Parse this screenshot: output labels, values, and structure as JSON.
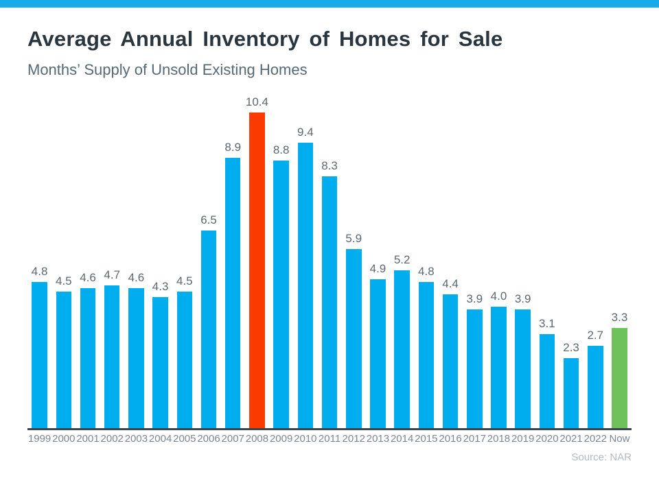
{
  "page": {
    "title": "Average Annual Inventory of Homes for Sale",
    "subtitle": "Months’ Supply of Unsold Existing Homes",
    "source": "Source: NAR"
  },
  "theme": {
    "top_strip": "#18AAE9",
    "bar_default": "#00AEEF",
    "bar_highlight": "#FB3A01",
    "bar_now": "#6FC15C",
    "title_color": "#2A363F",
    "subtitle_color": "#546A75",
    "value_label_color": "#5C6870",
    "axis_color": "#3A444E",
    "tick_color": "#7A8794",
    "source_color": "#B2BAC1"
  },
  "chart_data": {
    "type": "bar",
    "title": "Average Annual Inventory of Homes for Sale",
    "subtitle": "Months’ Supply of Unsold Existing Homes",
    "categories": [
      "1999",
      "2000",
      "2001",
      "2002",
      "2003",
      "2004",
      "2005",
      "2006",
      "2007",
      "2008",
      "2009",
      "2010",
      "2011",
      "2012",
      "2013",
      "2014",
      "2015",
      "2016",
      "2017",
      "2018",
      "2019",
      "2020",
      "2021",
      "2022",
      "Now"
    ],
    "values": [
      4.8,
      4.5,
      4.6,
      4.7,
      4.6,
      4.3,
      4.5,
      6.5,
      8.9,
      10.4,
      8.8,
      9.4,
      8.3,
      5.9,
      4.9,
      5.2,
      4.8,
      4.4,
      3.9,
      4.0,
      3.9,
      3.1,
      2.3,
      2.7,
      3.3
    ],
    "value_labels": [
      "4.8",
      "4.5",
      "4.6",
      "4.7",
      "4.6",
      "4.3",
      "4.5",
      "6.5",
      "8.9",
      "10.4",
      "8.8",
      "9.4",
      "8.3",
      "5.9",
      "4.9",
      "5.2",
      "4.8",
      "4.4",
      "3.9",
      "4.0",
      "3.9",
      "3.1",
      "2.3",
      "2.7",
      "3.3"
    ],
    "highlighted_category": "2008",
    "now_category": "Now",
    "ylabel": "",
    "xlabel": "",
    "ylim": [
      0,
      10.4
    ],
    "grid": false,
    "legend": false,
    "data_labels": true,
    "source": "Source: NAR"
  }
}
